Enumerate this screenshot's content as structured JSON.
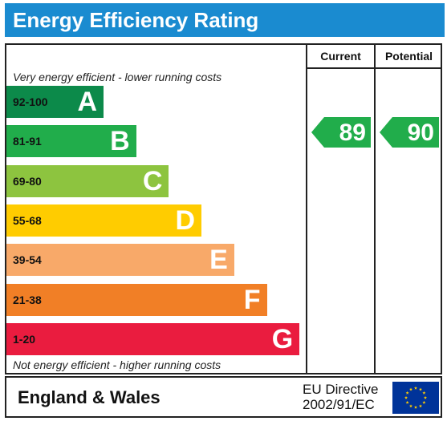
{
  "title": "Energy Efficiency Rating",
  "columns": {
    "current": "Current",
    "potential": "Potential"
  },
  "notes": {
    "top": "Very energy efficient - lower running costs",
    "bottom": "Not energy efficient - higher running costs"
  },
  "colors": {
    "header": "#1a8bd0",
    "A": "#0c8a4a",
    "B": "#21ad4b",
    "C": "#8dc43f",
    "D": "#ffcc00",
    "E": "#f8a969",
    "F": "#f17f26",
    "G": "#ea1c3f"
  },
  "chart_data": {
    "type": "bar",
    "title": "Energy Efficiency Rating",
    "bands": [
      {
        "letter": "A",
        "range": "92-100"
      },
      {
        "letter": "B",
        "range": "81-91"
      },
      {
        "letter": "C",
        "range": "69-80"
      },
      {
        "letter": "D",
        "range": "55-68"
      },
      {
        "letter": "E",
        "range": "39-54"
      },
      {
        "letter": "F",
        "range": "21-38"
      },
      {
        "letter": "G",
        "range": "1-20"
      }
    ],
    "current": {
      "value": 89,
      "band": "B",
      "label": "89"
    },
    "potential": {
      "value": 90,
      "band": "B",
      "label": "90"
    }
  },
  "footer": {
    "region": "England & Wales",
    "directive_line1": "EU Directive",
    "directive_line2": "2002/91/EC",
    "flag_icon": "eu-flag-icon"
  }
}
